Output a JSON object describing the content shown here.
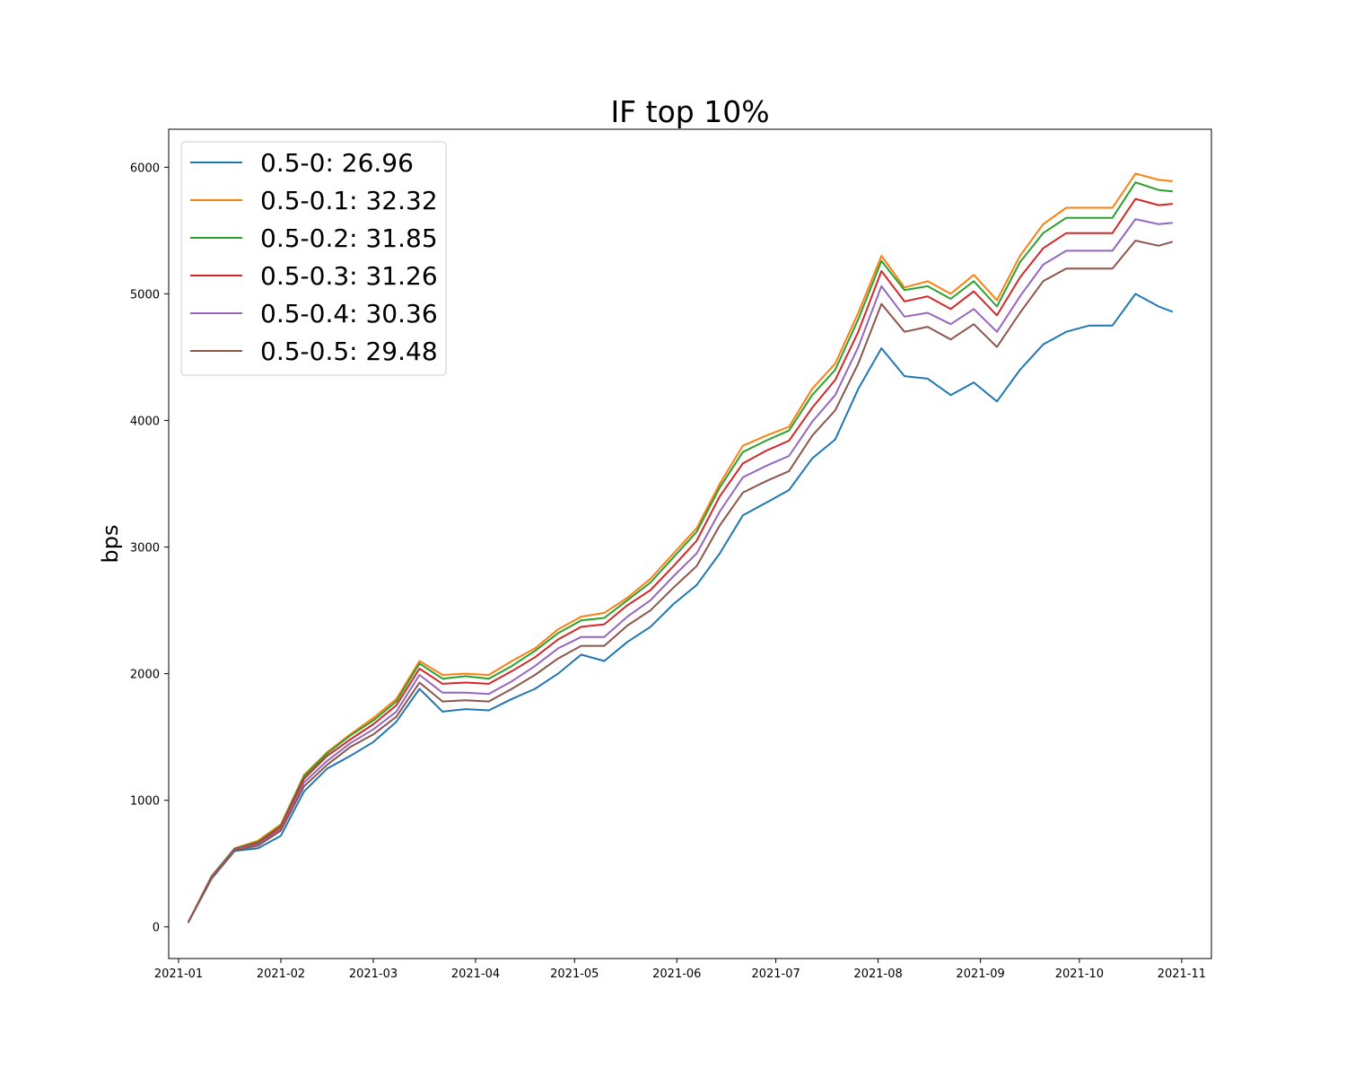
{
  "chart_data": {
    "type": "line",
    "title": "IF top 10%",
    "xlabel": "",
    "ylabel": "bps",
    "x_ticks": [
      "2021-01",
      "2021-02",
      "2021-03",
      "2021-04",
      "2021-05",
      "2021-06",
      "2021-07",
      "2021-08",
      "2021-09",
      "2021-10",
      "2021-11"
    ],
    "y_ticks": [
      0,
      1000,
      2000,
      3000,
      4000,
      5000,
      6000
    ],
    "xlim": [
      "2020-12-29",
      "2021-11-10"
    ],
    "ylim": [
      -250,
      6300
    ],
    "grid": false,
    "legend_position": "upper left",
    "x": [
      "2021-01-04",
      "2021-01-11",
      "2021-01-18",
      "2021-01-25",
      "2021-02-01",
      "2021-02-08",
      "2021-02-15",
      "2021-02-22",
      "2021-03-01",
      "2021-03-08",
      "2021-03-15",
      "2021-03-22",
      "2021-03-29",
      "2021-04-05",
      "2021-04-12",
      "2021-04-19",
      "2021-04-26",
      "2021-05-03",
      "2021-05-10",
      "2021-05-17",
      "2021-05-24",
      "2021-05-31",
      "2021-06-07",
      "2021-06-14",
      "2021-06-21",
      "2021-06-28",
      "2021-07-05",
      "2021-07-12",
      "2021-07-19",
      "2021-07-26",
      "2021-08-02",
      "2021-08-09",
      "2021-08-16",
      "2021-08-23",
      "2021-08-30",
      "2021-09-06",
      "2021-09-13",
      "2021-09-20",
      "2021-09-27",
      "2021-10-04",
      "2021-10-11",
      "2021-10-18",
      "2021-10-25",
      "2021-10-29"
    ],
    "series": [
      {
        "name": "0.5-0: 26.96",
        "color": "#1f77b4",
        "values": [
          40,
          380,
          600,
          620,
          720,
          1070,
          1250,
          1350,
          1460,
          1620,
          1880,
          1700,
          1720,
          1710,
          1800,
          1880,
          2000,
          2150,
          2100,
          2250,
          2370,
          2550,
          2700,
          2950,
          3250,
          3350,
          3450,
          3700,
          3850,
          4250,
          4570,
          4350,
          4330,
          4200,
          4300,
          4150,
          4400,
          4600,
          4700,
          4750,
          4750,
          5000,
          4900,
          4860
        ]
      },
      {
        "name": "0.5-0.1: 32.32",
        "color": "#ff7f0e",
        "values": [
          40,
          400,
          620,
          680,
          810,
          1200,
          1380,
          1520,
          1650,
          1800,
          2100,
          1990,
          2000,
          1990,
          2100,
          2200,
          2350,
          2450,
          2480,
          2600,
          2750,
          2950,
          3150,
          3500,
          3800,
          3880,
          3950,
          4250,
          4450,
          4850,
          5300,
          5050,
          5100,
          5000,
          5150,
          4950,
          5300,
          5550,
          5680,
          5680,
          5680,
          5950,
          5900,
          5890
        ]
      },
      {
        "name": "0.5-0.2: 31.85",
        "color": "#2ca02c",
        "values": [
          40,
          400,
          620,
          670,
          800,
          1190,
          1370,
          1510,
          1630,
          1780,
          2080,
          1960,
          1980,
          1960,
          2060,
          2180,
          2320,
          2420,
          2440,
          2580,
          2720,
          2920,
          3120,
          3470,
          3750,
          3840,
          3920,
          4200,
          4400,
          4800,
          5260,
          5030,
          5060,
          4960,
          5100,
          4900,
          5250,
          5480,
          5600,
          5600,
          5600,
          5880,
          5820,
          5810
        ]
      },
      {
        "name": "0.5-0.3: 31.26",
        "color": "#d62728",
        "values": [
          40,
          395,
          615,
          660,
          790,
          1170,
          1350,
          1480,
          1600,
          1750,
          2040,
          1920,
          1930,
          1920,
          2020,
          2130,
          2270,
          2370,
          2390,
          2540,
          2660,
          2850,
          3050,
          3400,
          3660,
          3760,
          3840,
          4100,
          4320,
          4700,
          5180,
          4940,
          4980,
          4880,
          5020,
          4830,
          5130,
          5360,
          5480,
          5480,
          5480,
          5750,
          5700,
          5710
        ]
      },
      {
        "name": "0.5-0.4: 30.36",
        "color": "#9467bd",
        "values": [
          40,
          390,
          610,
          650,
          770,
          1140,
          1310,
          1450,
          1560,
          1700,
          1990,
          1850,
          1850,
          1840,
          1940,
          2060,
          2200,
          2290,
          2290,
          2450,
          2580,
          2770,
          2950,
          3280,
          3550,
          3640,
          3720,
          3990,
          4200,
          4580,
          5060,
          4820,
          4850,
          4760,
          4880,
          4700,
          4980,
          5230,
          5340,
          5340,
          5340,
          5590,
          5550,
          5560
        ]
      },
      {
        "name": "0.5-0.5: 29.48",
        "color": "#8c564b",
        "values": [
          40,
          385,
          605,
          640,
          760,
          1110,
          1280,
          1420,
          1520,
          1660,
          1930,
          1780,
          1790,
          1780,
          1880,
          1990,
          2120,
          2220,
          2220,
          2380,
          2500,
          2680,
          2850,
          3170,
          3430,
          3520,
          3600,
          3880,
          4080,
          4450,
          4920,
          4700,
          4740,
          4640,
          4760,
          4580,
          4850,
          5100,
          5200,
          5200,
          5200,
          5420,
          5380,
          5410
        ]
      }
    ]
  }
}
